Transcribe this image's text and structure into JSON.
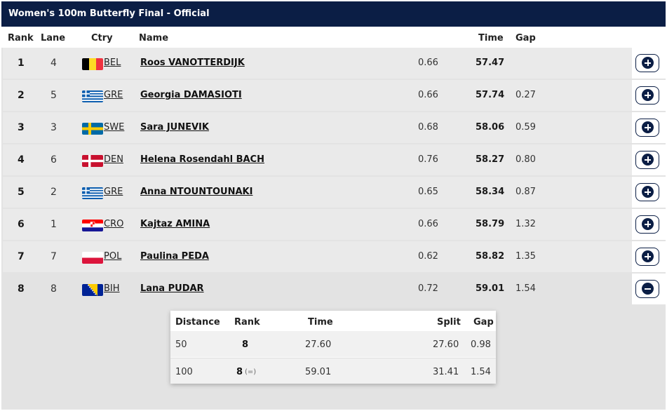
{
  "title": "Women's 100m Butterfly Final  -  Official",
  "headers": {
    "rank": "Rank",
    "lane": "Lane",
    "ctry": "Ctry",
    "name": "Name",
    "time": "Time",
    "gap": "Gap"
  },
  "rows": [
    {
      "rank": "1",
      "lane": "4",
      "ctry": "BEL",
      "name": "Roos VANOTTERDIJK",
      "reaction": "0.66",
      "time": "57.47",
      "gap": "",
      "expanded": false
    },
    {
      "rank": "2",
      "lane": "5",
      "ctry": "GRE",
      "name": "Georgia DAMASIOTI",
      "reaction": "0.66",
      "time": "57.74",
      "gap": "0.27",
      "expanded": false
    },
    {
      "rank": "3",
      "lane": "3",
      "ctry": "SWE",
      "name": "Sara JUNEVIK",
      "reaction": "0.68",
      "time": "58.06",
      "gap": "0.59",
      "expanded": false
    },
    {
      "rank": "4",
      "lane": "6",
      "ctry": "DEN",
      "name": "Helena Rosendahl BACH",
      "reaction": "0.76",
      "time": "58.27",
      "gap": "0.80",
      "expanded": false
    },
    {
      "rank": "5",
      "lane": "2",
      "ctry": "GRE",
      "name": "Anna NTOUNTOUNAKI",
      "reaction": "0.65",
      "time": "58.34",
      "gap": "0.87",
      "expanded": false
    },
    {
      "rank": "6",
      "lane": "1",
      "ctry": "CRO",
      "name": "Kajtaz AMINA",
      "reaction": "0.66",
      "time": "58.79",
      "gap": "1.32",
      "expanded": false
    },
    {
      "rank": "7",
      "lane": "7",
      "ctry": "POL",
      "name": "Paulina PEDA",
      "reaction": "0.62",
      "time": "58.82",
      "gap": "1.35",
      "expanded": false
    },
    {
      "rank": "8",
      "lane": "8",
      "ctry": "BIH",
      "name": "Lana PUDAR",
      "reaction": "0.72",
      "time": "59.01",
      "gap": "1.54",
      "expanded": true
    }
  ],
  "splits": {
    "headers": {
      "distance": "Distance",
      "rank": "Rank",
      "time": "Time",
      "split": "Split",
      "gap": "Gap"
    },
    "rows": [
      {
        "distance": "50",
        "rank": "8",
        "change": "",
        "time": "27.60",
        "split": "27.60",
        "gap": "0.98"
      },
      {
        "distance": "100",
        "rank": "8",
        "change": "(=)",
        "time": "59.01",
        "split": "31.41",
        "gap": "1.54"
      }
    ]
  },
  "colors": {
    "navy": "#0b1e45",
    "row_bg": "#eaeaea",
    "panel_bg": "#e3e3e3"
  },
  "icons": {
    "expand": "plus-circle-icon",
    "collapse": "minus-circle-icon"
  }
}
